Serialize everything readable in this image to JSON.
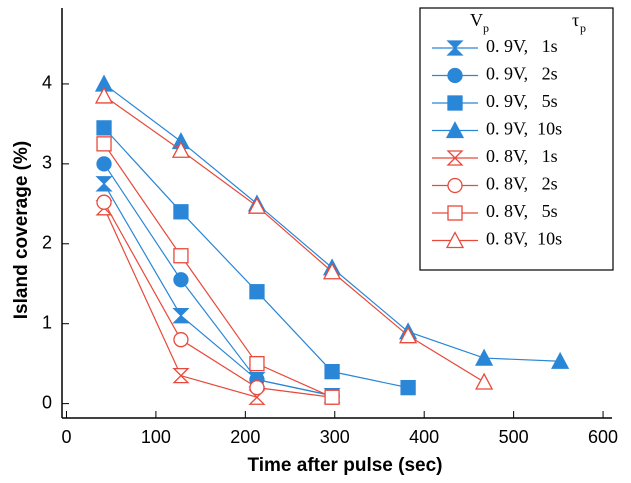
{
  "chart_data": {
    "type": "line",
    "x_label": "Time after pulse (sec)",
    "y_label": "Island coverage (%)",
    "xlim": [
      -5,
      610
    ],
    "ylim": [
      -0.18,
      4.95
    ],
    "xticks": [
      0,
      100,
      200,
      300,
      400,
      500,
      600
    ],
    "yticks": [
      0,
      1,
      2,
      3,
      4
    ],
    "legend_header": {
      "v": "V",
      "v_sub": "p",
      "tau": "τ",
      "tau_sub": "p"
    },
    "legend_position": "upper right",
    "series": [
      {
        "name": "0. 9V,   1s",
        "color": "#2a86d6",
        "marker": "bowtie",
        "filled": true,
        "x": [
          42,
          128,
          213,
          297
        ],
        "values": [
          2.75,
          1.1,
          0.3,
          0.1
        ]
      },
      {
        "name": "0. 9V,   2s",
        "color": "#2a86d6",
        "marker": "circle",
        "filled": true,
        "x": [
          42,
          128,
          213,
          297
        ],
        "values": [
          3.0,
          1.55,
          0.3,
          0.1
        ]
      },
      {
        "name": "0. 9V,   5s",
        "color": "#2a86d6",
        "marker": "square",
        "filled": true,
        "x": [
          42,
          128,
          213,
          297,
          382
        ],
        "values": [
          3.45,
          2.4,
          1.4,
          0.4,
          0.2
        ]
      },
      {
        "name": "0. 9V,  10s",
        "color": "#2a86d6",
        "marker": "triangle",
        "filled": true,
        "x": [
          42,
          128,
          213,
          297,
          382,
          467,
          552
        ],
        "values": [
          4.0,
          3.28,
          2.5,
          1.7,
          0.9,
          0.57,
          0.53
        ]
      },
      {
        "name": "0. 8V,   1s",
        "color": "#e8493a",
        "marker": "bowtie",
        "filled": false,
        "x": [
          42,
          128,
          213
        ],
        "values": [
          2.45,
          0.35,
          0.08
        ]
      },
      {
        "name": "0. 8V,   2s",
        "color": "#e8493a",
        "marker": "circle",
        "filled": false,
        "x": [
          42,
          128,
          213,
          297
        ],
        "values": [
          2.52,
          0.8,
          0.2,
          0.08
        ]
      },
      {
        "name": "0. 8V,   5s",
        "color": "#e8493a",
        "marker": "square",
        "filled": false,
        "x": [
          42,
          128,
          213,
          297
        ],
        "values": [
          3.25,
          1.85,
          0.5,
          0.08
        ]
      },
      {
        "name": "0. 8V,  10s",
        "color": "#e8493a",
        "marker": "triangle",
        "filled": false,
        "x": [
          42,
          128,
          213,
          297,
          382,
          467
        ],
        "values": [
          3.85,
          3.17,
          2.47,
          1.65,
          0.85,
          0.27
        ]
      }
    ]
  }
}
